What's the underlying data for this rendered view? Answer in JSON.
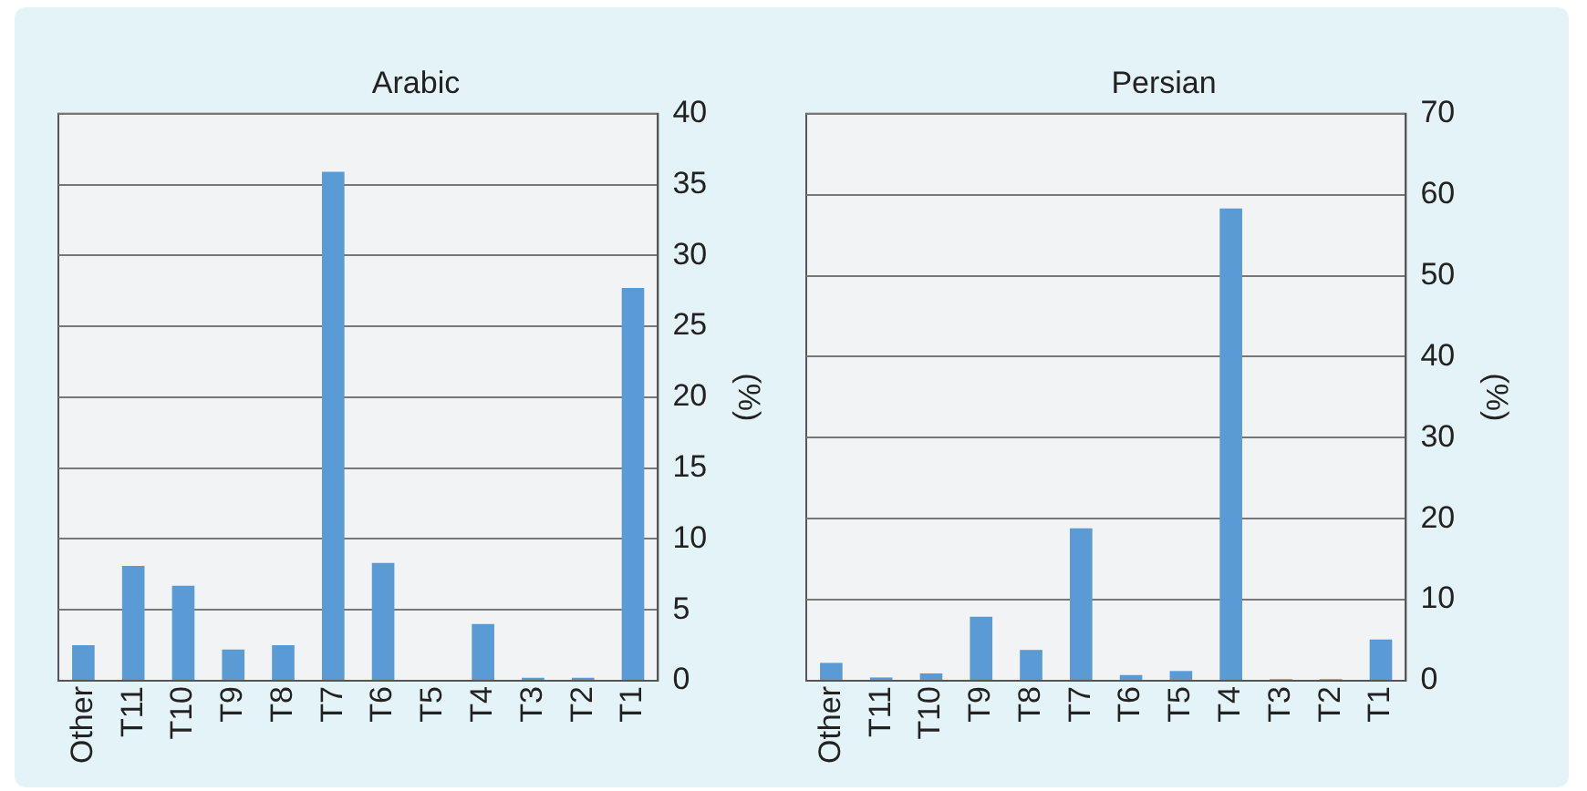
{
  "chart_data": [
    {
      "type": "bar",
      "title": "Arabic",
      "ylabel": "(%)",
      "categories": [
        "Other",
        "T11",
        "T10",
        "T9",
        "T8",
        "T7",
        "T6",
        "T5",
        "T4",
        "T3",
        "T2",
        "T1"
      ],
      "values": [
        2.5,
        8.1,
        6.7,
        2.2,
        2.5,
        35.9,
        8.3,
        0,
        4.0,
        0.2,
        0.2,
        27.7
      ],
      "color": "#5b9bd5",
      "ylim": [
        0,
        40
      ],
      "yticks": [
        0,
        5,
        10,
        15,
        20,
        25,
        30,
        35,
        40
      ],
      "grid": "y"
    },
    {
      "type": "bar",
      "title": "Persian",
      "ylabel": "(%)",
      "categories": [
        "Other",
        "T11",
        "T10",
        "T9",
        "T8",
        "T7",
        "T6",
        "T5",
        "T4",
        "T3",
        "T2",
        "T1"
      ],
      "values": [
        2.2,
        0.4,
        0.9,
        7.9,
        3.8,
        18.8,
        0.7,
        1.2,
        58.3,
        0.2,
        0.2,
        5.1
      ],
      "color": "#5b9bd5",
      "ylim": [
        0,
        70
      ],
      "yticks": [
        0,
        10,
        20,
        30,
        40,
        50,
        60,
        70
      ],
      "grid": "y"
    }
  ]
}
